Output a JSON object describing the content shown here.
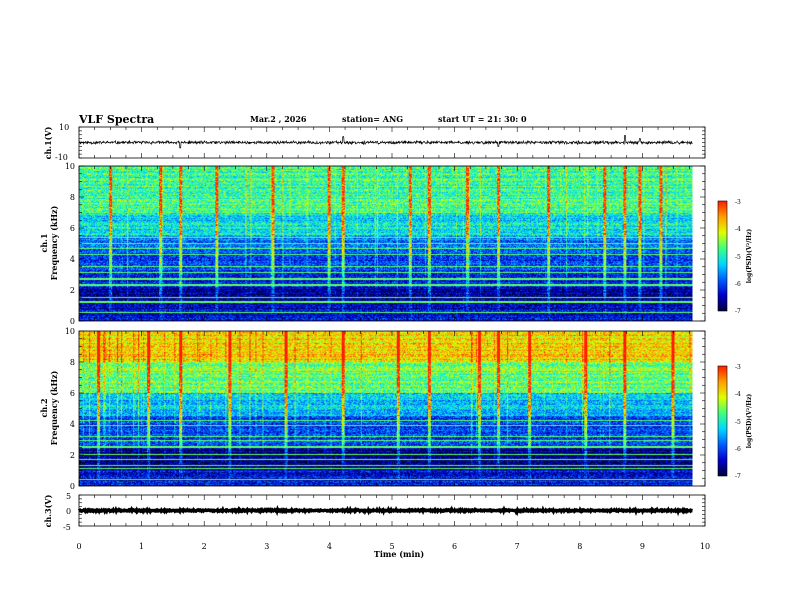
{
  "header": {
    "title": "VLF Spectra",
    "date": "Mar.2 , 2026",
    "station": "station= ANG",
    "start_time": "start UT = 21: 30: 0"
  },
  "colors": {
    "axis": "#000000",
    "waveform": "#000000",
    "background": "#ffffff",
    "colormap": [
      "#000040",
      "#0000cc",
      "#0060ff",
      "#00d8ff",
      "#40ff80",
      "#e0ff00",
      "#ffa000",
      "#ff2000",
      "#ffffff"
    ]
  },
  "chart_data": [
    {
      "type": "line",
      "name": "ch1-waveform",
      "ylabel": "ch.1(V)",
      "ylim": [
        -10,
        10
      ],
      "y_ticks": [
        "10",
        "-10"
      ],
      "xlim": [
        0,
        10
      ],
      "baseline_v": 0,
      "noise_amplitude_v": 1.2,
      "spikes": [
        {
          "t_min": 1.62,
          "v": -3.5
        },
        {
          "t_min": 4.22,
          "v": 3.8
        },
        {
          "t_min": 6.7,
          "v": -2.5
        },
        {
          "t_min": 8.72,
          "v": 4.5
        },
        {
          "t_min": 8.96,
          "v": 2.5
        }
      ]
    },
    {
      "type": "heatmap",
      "name": "ch1-spectrogram",
      "ylabel_channel": "ch.1",
      "ylabel": "Frequency (kHz)",
      "ylim": [
        0,
        10
      ],
      "y_ticks": [
        "0",
        "2",
        "4",
        "6",
        "8",
        "10"
      ],
      "xlim": [
        0,
        9.8
      ],
      "data_end_min": 9.8,
      "colorbar": {
        "label": "log(PSD)(V²/Hz)",
        "range": [
          -7,
          -3
        ],
        "ticks": [
          "-3",
          "-4",
          "-5",
          "-6",
          "-7"
        ]
      },
      "bands_log_psd": [
        {
          "f_khz": [
            0.0,
            1.0
          ],
          "level": -6.4
        },
        {
          "f_khz": [
            1.0,
            2.2
          ],
          "level": -6.7
        },
        {
          "f_khz": [
            2.2,
            3.0
          ],
          "level": -6.2
        },
        {
          "f_khz": [
            3.0,
            4.5
          ],
          "level": -6.0
        },
        {
          "f_khz": [
            4.5,
            5.5
          ],
          "level": -5.7
        },
        {
          "f_khz": [
            5.5,
            7.0
          ],
          "level": -5.2
        },
        {
          "f_khz": [
            7.0,
            10.0
          ],
          "level": -4.8
        }
      ],
      "tone_lines_khz": [
        0.5,
        1.2,
        1.5,
        2.3,
        2.7,
        3.1,
        3.5,
        4.3,
        4.7,
        5.0,
        5.4
      ],
      "impulse_times_min": [
        0.5,
        1.3,
        1.62,
        2.2,
        3.1,
        4.0,
        4.22,
        5.3,
        5.6,
        6.2,
        6.7,
        7.5,
        8.4,
        8.72,
        8.96,
        9.3
      ]
    },
    {
      "type": "heatmap",
      "name": "ch2-spectrogram",
      "ylabel_channel": "ch.2",
      "ylabel": "Frequency (kHz)",
      "ylim": [
        0,
        10
      ],
      "y_ticks": [
        "0",
        "2",
        "4",
        "6",
        "8",
        "10"
      ],
      "xlim": [
        0,
        9.8
      ],
      "data_end_min": 9.8,
      "colorbar": {
        "label": "log(PSD)(V²/Hz)",
        "range": [
          -7,
          -3
        ],
        "ticks": [
          "-3",
          "-4",
          "-5",
          "-6",
          "-7"
        ]
      },
      "bands_log_psd": [
        {
          "f_khz": [
            0.0,
            1.0
          ],
          "level": -6.3
        },
        {
          "f_khz": [
            1.0,
            2.5
          ],
          "level": -6.7
        },
        {
          "f_khz": [
            2.5,
            4.5
          ],
          "level": -6.0
        },
        {
          "f_khz": [
            4.5,
            6.0
          ],
          "level": -5.4
        },
        {
          "f_khz": [
            6.0,
            8.0
          ],
          "level": -4.6
        },
        {
          "f_khz": [
            8.0,
            10.0
          ],
          "level": -3.9
        }
      ],
      "tone_lines_khz": [
        0.4,
        1.1,
        1.3,
        1.7,
        2.0,
        2.5,
        2.9,
        3.2,
        3.9,
        4.2
      ],
      "impulse_times_min": [
        0.3,
        1.1,
        1.62,
        2.4,
        3.3,
        4.22,
        5.1,
        5.6,
        6.4,
        6.7,
        7.2,
        8.1,
        8.72,
        9.5
      ]
    },
    {
      "type": "line",
      "name": "ch3-waveform",
      "ylabel": "ch.3(V)",
      "ylim": [
        -5,
        5
      ],
      "y_ticks": [
        "5",
        "0",
        "-5"
      ],
      "xlim": [
        0,
        10
      ],
      "baseline_v": 0,
      "noise_amplitude_v": 0.3,
      "spikes": []
    }
  ],
  "x_axis": {
    "label": "Time (min)",
    "range": [
      0,
      10
    ],
    "ticks": [
      "0",
      "1",
      "2",
      "3",
      "4",
      "5",
      "6",
      "7",
      "8",
      "9",
      "10"
    ]
  }
}
